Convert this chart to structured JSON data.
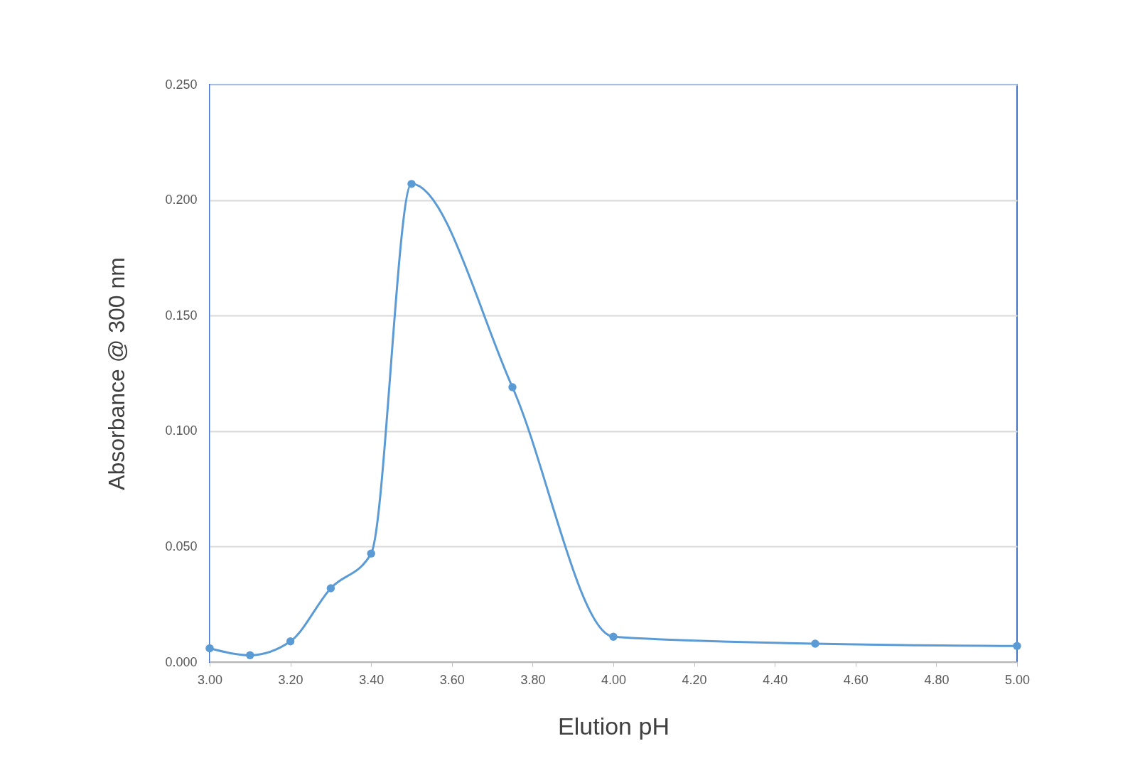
{
  "chart_data": {
    "type": "line",
    "xlabel": "Elution pH",
    "ylabel": "Absorbance @ 300 nm",
    "x": [
      3.0,
      3.1,
      3.2,
      3.3,
      3.4,
      3.5,
      3.75,
      4.0,
      4.5,
      5.0
    ],
    "series": [
      {
        "color": "#5b9bd5",
        "values": [
          0.006,
          0.003,
          0.009,
          0.032,
          0.047,
          0.207,
          0.119,
          0.011,
          0.008,
          0.007
        ]
      }
    ],
    "xlim": [
      3.0,
      5.0
    ],
    "xticks": [
      {
        "value": 3.0,
        "label": "3.00"
      },
      {
        "value": 3.2,
        "label": "3.20"
      },
      {
        "value": 3.4,
        "label": "3.40"
      },
      {
        "value": 3.6,
        "label": "3.60"
      },
      {
        "value": 3.8,
        "label": "3.80"
      },
      {
        "value": 4.0,
        "label": "4.00"
      },
      {
        "value": 4.2,
        "label": "4.20"
      },
      {
        "value": 4.4,
        "label": "4.40"
      },
      {
        "value": 4.6,
        "label": "4.60"
      },
      {
        "value": 4.8,
        "label": "4.80"
      },
      {
        "value": 5.0,
        "label": "5.00"
      }
    ],
    "ylim": [
      0,
      0.25
    ],
    "yticks": [
      {
        "value": 0,
        "label": "0.000"
      },
      {
        "value": 0.05,
        "label": "0.050"
      },
      {
        "value": 0.1,
        "label": "0.100"
      },
      {
        "value": 0.15,
        "label": "0.150"
      },
      {
        "value": 0.2,
        "label": "0.200"
      },
      {
        "value": 0.25,
        "label": "0.250"
      }
    ],
    "grid": "y",
    "marker": "circle",
    "line_style": "solid"
  }
}
